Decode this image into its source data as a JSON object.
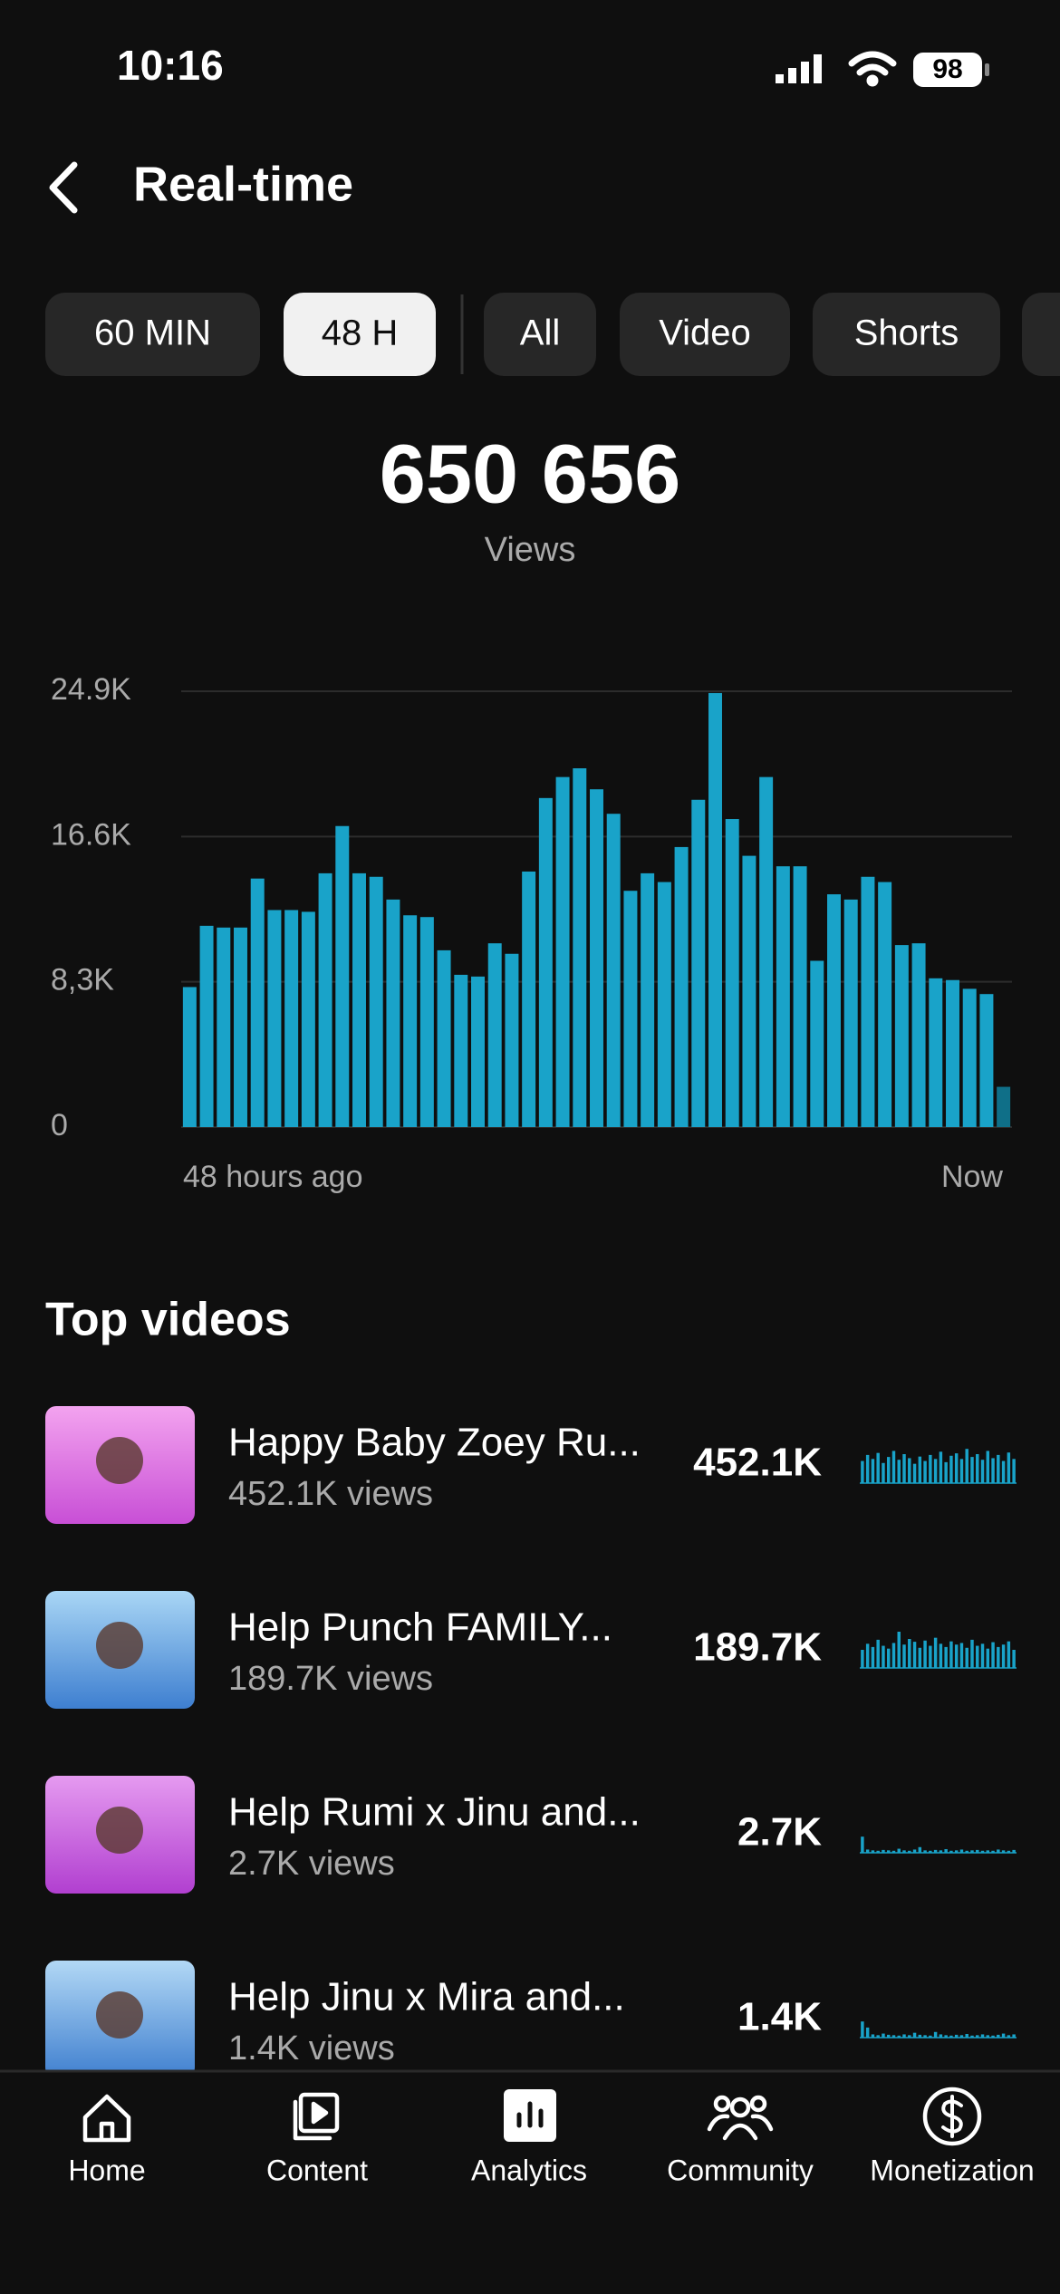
{
  "status_bar": {
    "time": "10:16",
    "battery": "98"
  },
  "header": {
    "title": "Real-time"
  },
  "filters": [
    {
      "label": "60 MIN",
      "selected": false
    },
    {
      "label": "48 H",
      "selected": true
    },
    {
      "label": "All",
      "selected": false
    },
    {
      "label": "Video",
      "selected": false
    },
    {
      "label": "Shorts",
      "selected": false
    }
  ],
  "total": {
    "value": "650 656",
    "label": "Views"
  },
  "chart_data": {
    "type": "bar",
    "categories": [
      "48 hours ago",
      null,
      null,
      null,
      null,
      null,
      null,
      null,
      null,
      null,
      null,
      null,
      null,
      null,
      null,
      null,
      null,
      null,
      null,
      null,
      null,
      null,
      null,
      null,
      null,
      null,
      null,
      null,
      null,
      null,
      null,
      null,
      null,
      null,
      null,
      null,
      null,
      null,
      null,
      null,
      null,
      null,
      null,
      null,
      null,
      null,
      null,
      null,
      "Now"
    ],
    "values": [
      8000,
      11500,
      11400,
      11400,
      14200,
      12400,
      12400,
      12300,
      14500,
      17200,
      14500,
      14300,
      13000,
      12100,
      12000,
      10100,
      8700,
      8600,
      10500,
      9900,
      14600,
      18800,
      20000,
      20500,
      19300,
      17900,
      13500,
      14500,
      14000,
      16000,
      18700,
      24800,
      17600,
      15500,
      20000,
      14900,
      14900,
      9500,
      13300,
      13000,
      14300,
      14000,
      10400,
      10500,
      8500,
      8400,
      7900,
      7600,
      2300
    ],
    "color": "#19a3c9",
    "last_color": "#0f6f88",
    "ylim": [
      0,
      24900
    ],
    "yticks": [
      0,
      {
        "value": 8300,
        "label": "8,3K"
      },
      {
        "value": 16600,
        "label": "16.6K"
      },
      {
        "value": 24900,
        "label": "24.9K"
      }
    ],
    "grid": true
  },
  "top_videos": {
    "title": "Top videos",
    "items": [
      {
        "title": "Happy Baby Zoey Ru...",
        "subtitle": "452.1K views",
        "value": "452.1K",
        "spark": [
          55,
          70,
          60,
          75,
          50,
          65,
          80,
          58,
          72,
          62,
          48,
          66,
          55,
          70,
          60,
          78,
          52,
          68,
          74,
          60,
          85,
          65,
          72,
          58,
          80,
          62,
          70,
          55,
          76,
          60
        ]
      },
      {
        "title": "Help Punch FAMILY...",
        "subtitle": "189.7K views",
        "value": "189.7K",
        "spark": [
          45,
          60,
          52,
          70,
          55,
          48,
          62,
          90,
          58,
          72,
          65,
          50,
          68,
          55,
          75,
          60,
          52,
          66,
          58,
          62,
          50,
          70,
          55,
          60,
          48,
          64,
          52,
          58,
          66,
          45
        ]
      },
      {
        "title": "Help Rumi x Jinu and...",
        "subtitle": "2.7K views",
        "value": "2.7K",
        "spark": [
          40,
          8,
          6,
          5,
          7,
          6,
          5,
          10,
          6,
          5,
          8,
          14,
          6,
          5,
          7,
          6,
          9,
          5,
          6,
          8,
          5,
          6,
          7,
          5,
          6,
          5,
          8,
          6,
          5,
          7
        ]
      },
      {
        "title": "Help Jinu x Mira and...",
        "subtitle": "1.4K views",
        "value": "1.4K",
        "spark": [
          40,
          25,
          8,
          6,
          10,
          7,
          6,
          5,
          8,
          6,
          12,
          7,
          6,
          5,
          14,
          8,
          6,
          5,
          7,
          6,
          9,
          5,
          6,
          8,
          6,
          5,
          7,
          10,
          6,
          8
        ]
      }
    ]
  },
  "nav": [
    {
      "label": "Home"
    },
    {
      "label": "Content"
    },
    {
      "label": "Analytics"
    },
    {
      "label": "Community"
    },
    {
      "label": "Monetization"
    }
  ]
}
